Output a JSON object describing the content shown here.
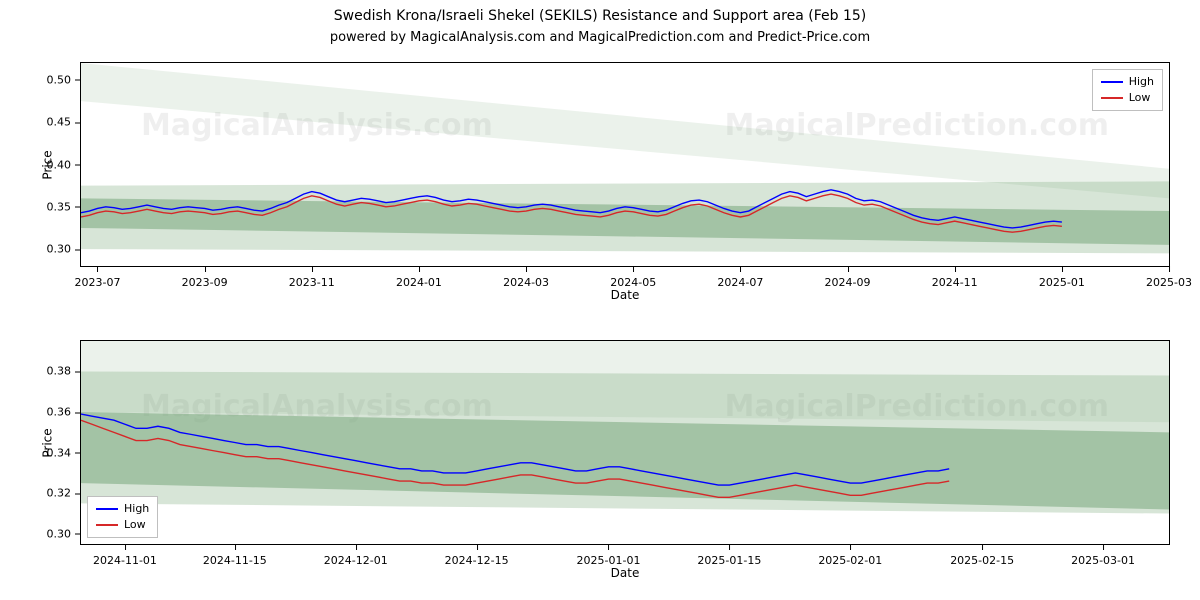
{
  "title": "Swedish Krona/Israeli Shekel (SEKILS) Resistance and Support area (Feb 15)",
  "subtitle": "powered by MagicalAnalysis.com and MagicalPrediction.com and Predict-Price.com",
  "watermark_left": "MagicalAnalysis.com",
  "watermark_right": "MagicalPrediction.com",
  "legend": {
    "high": "High",
    "low": "Low"
  },
  "colors": {
    "high_line": "#0000ff",
    "low_line": "#d62728",
    "band_fill": "#79a87b",
    "band_opacity_dark": 0.55,
    "band_opacity_mid": 0.3,
    "band_opacity_light": 0.15,
    "axis": "#000000",
    "background": "#ffffff",
    "watermark": "#000000",
    "legend_border": "#bfbfbf"
  },
  "axis_labels": {
    "x": "Date",
    "y": "Price"
  },
  "line_width": 1.4,
  "title_fontsize": 14,
  "subtitle_fontsize": 13,
  "label_fontsize": 12,
  "tick_fontsize": 11,
  "chart_top": {
    "type": "line",
    "ylim": [
      0.28,
      0.52
    ],
    "yticks": [
      0.3,
      0.35,
      0.4,
      0.45,
      0.5
    ],
    "ytick_labels": [
      "0.30",
      "0.35",
      "0.40",
      "0.45",
      "0.50"
    ],
    "x_count": 120,
    "x_extent": 133,
    "xtick_positions": [
      2,
      15,
      28,
      41,
      54,
      67,
      80,
      93,
      106,
      119,
      132
    ],
    "xtick_labels": [
      "2023-07",
      "2023-09",
      "2023-11",
      "2024-01",
      "2024-03",
      "2024-05",
      "2024-07",
      "2024-09",
      "2024-11",
      "2025-01",
      "2025-03"
    ],
    "bands": [
      {
        "y0_start": 0.475,
        "y1_start": 0.52,
        "y0_end": 0.36,
        "y1_end": 0.395,
        "opacity": 0.15
      },
      {
        "y0_start": 0.3,
        "y1_start": 0.375,
        "y0_end": 0.295,
        "y1_end": 0.38,
        "opacity": 0.3
      },
      {
        "y0_start": 0.325,
        "y1_start": 0.36,
        "y0_end": 0.305,
        "y1_end": 0.345,
        "opacity": 0.55
      }
    ],
    "high": [
      0.343,
      0.345,
      0.348,
      0.35,
      0.349,
      0.347,
      0.348,
      0.35,
      0.352,
      0.35,
      0.348,
      0.347,
      0.349,
      0.35,
      0.349,
      0.348,
      0.346,
      0.347,
      0.349,
      0.35,
      0.348,
      0.346,
      0.345,
      0.348,
      0.352,
      0.355,
      0.36,
      0.365,
      0.368,
      0.366,
      0.362,
      0.358,
      0.356,
      0.358,
      0.36,
      0.359,
      0.357,
      0.355,
      0.356,
      0.358,
      0.36,
      0.362,
      0.363,
      0.361,
      0.358,
      0.356,
      0.357,
      0.359,
      0.358,
      0.356,
      0.354,
      0.352,
      0.35,
      0.349,
      0.35,
      0.352,
      0.353,
      0.352,
      0.35,
      0.348,
      0.346,
      0.345,
      0.344,
      0.343,
      0.345,
      0.348,
      0.35,
      0.349,
      0.347,
      0.345,
      0.344,
      0.346,
      0.35,
      0.354,
      0.357,
      0.358,
      0.356,
      0.352,
      0.348,
      0.345,
      0.343,
      0.345,
      0.35,
      0.355,
      0.36,
      0.365,
      0.368,
      0.366,
      0.362,
      0.365,
      0.368,
      0.37,
      0.368,
      0.365,
      0.36,
      0.357,
      0.358,
      0.356,
      0.352,
      0.348,
      0.344,
      0.34,
      0.337,
      0.335,
      0.334,
      0.336,
      0.338,
      0.336,
      0.334,
      0.332,
      0.33,
      0.328,
      0.326,
      0.325,
      0.326,
      0.328,
      0.33,
      0.332,
      0.333,
      0.332
    ],
    "low": [
      0.338,
      0.34,
      0.343,
      0.345,
      0.344,
      0.342,
      0.343,
      0.345,
      0.347,
      0.345,
      0.343,
      0.342,
      0.344,
      0.345,
      0.344,
      0.343,
      0.341,
      0.342,
      0.344,
      0.345,
      0.343,
      0.341,
      0.34,
      0.343,
      0.347,
      0.35,
      0.355,
      0.36,
      0.363,
      0.361,
      0.357,
      0.353,
      0.351,
      0.353,
      0.355,
      0.354,
      0.352,
      0.35,
      0.351,
      0.353,
      0.355,
      0.357,
      0.358,
      0.356,
      0.353,
      0.351,
      0.352,
      0.354,
      0.353,
      0.351,
      0.349,
      0.347,
      0.345,
      0.344,
      0.345,
      0.347,
      0.348,
      0.347,
      0.345,
      0.343,
      0.341,
      0.34,
      0.339,
      0.338,
      0.34,
      0.343,
      0.345,
      0.344,
      0.342,
      0.34,
      0.339,
      0.341,
      0.345,
      0.349,
      0.352,
      0.353,
      0.351,
      0.347,
      0.343,
      0.34,
      0.338,
      0.34,
      0.345,
      0.35,
      0.355,
      0.36,
      0.363,
      0.361,
      0.357,
      0.36,
      0.363,
      0.365,
      0.363,
      0.36,
      0.355,
      0.352,
      0.353,
      0.351,
      0.347,
      0.343,
      0.339,
      0.335,
      0.332,
      0.33,
      0.329,
      0.331,
      0.333,
      0.331,
      0.329,
      0.327,
      0.325,
      0.323,
      0.321,
      0.32,
      0.321,
      0.323,
      0.325,
      0.327,
      0.328,
      0.327
    ]
  },
  "chart_bot": {
    "type": "line",
    "ylim": [
      0.295,
      0.395
    ],
    "yticks": [
      0.3,
      0.32,
      0.34,
      0.36,
      0.38
    ],
    "ytick_labels": [
      "0.30",
      "0.32",
      "0.34",
      "0.36",
      "0.38"
    ],
    "x_count": 80,
    "x_extent": 100,
    "xtick_positions": [
      4,
      14,
      25,
      36,
      48,
      59,
      70,
      82,
      93
    ],
    "xtick_labels": [
      "2024-11-01",
      "2024-11-15",
      "2024-12-01",
      "2024-12-15",
      "2025-01-01",
      "2025-01-15",
      "2025-02-01",
      "2025-02-15",
      "2025-03-01"
    ],
    "bands": [
      {
        "y0_start": 0.36,
        "y1_start": 0.4,
        "y0_end": 0.355,
        "y1_end": 0.4,
        "opacity": 0.15
      },
      {
        "y0_start": 0.315,
        "y1_start": 0.38,
        "y0_end": 0.31,
        "y1_end": 0.378,
        "opacity": 0.3
      },
      {
        "y0_start": 0.325,
        "y1_start": 0.36,
        "y0_end": 0.312,
        "y1_end": 0.35,
        "opacity": 0.55
      }
    ],
    "high": [
      0.359,
      0.358,
      0.357,
      0.356,
      0.354,
      0.352,
      0.352,
      0.353,
      0.352,
      0.35,
      0.349,
      0.348,
      0.347,
      0.346,
      0.345,
      0.344,
      0.344,
      0.343,
      0.343,
      0.342,
      0.341,
      0.34,
      0.339,
      0.338,
      0.337,
      0.336,
      0.335,
      0.334,
      0.333,
      0.332,
      0.332,
      0.331,
      0.331,
      0.33,
      0.33,
      0.33,
      0.331,
      0.332,
      0.333,
      0.334,
      0.335,
      0.335,
      0.334,
      0.333,
      0.332,
      0.331,
      0.331,
      0.332,
      0.333,
      0.333,
      0.332,
      0.331,
      0.33,
      0.329,
      0.328,
      0.327,
      0.326,
      0.325,
      0.324,
      0.324,
      0.325,
      0.326,
      0.327,
      0.328,
      0.329,
      0.33,
      0.329,
      0.328,
      0.327,
      0.326,
      0.325,
      0.325,
      0.326,
      0.327,
      0.328,
      0.329,
      0.33,
      0.331,
      0.331,
      0.332
    ],
    "low": [
      0.356,
      0.354,
      0.352,
      0.35,
      0.348,
      0.346,
      0.346,
      0.347,
      0.346,
      0.344,
      0.343,
      0.342,
      0.341,
      0.34,
      0.339,
      0.338,
      0.338,
      0.337,
      0.337,
      0.336,
      0.335,
      0.334,
      0.333,
      0.332,
      0.331,
      0.33,
      0.329,
      0.328,
      0.327,
      0.326,
      0.326,
      0.325,
      0.325,
      0.324,
      0.324,
      0.324,
      0.325,
      0.326,
      0.327,
      0.328,
      0.329,
      0.329,
      0.328,
      0.327,
      0.326,
      0.325,
      0.325,
      0.326,
      0.327,
      0.327,
      0.326,
      0.325,
      0.324,
      0.323,
      0.322,
      0.321,
      0.32,
      0.319,
      0.318,
      0.318,
      0.319,
      0.32,
      0.321,
      0.322,
      0.323,
      0.324,
      0.323,
      0.322,
      0.321,
      0.32,
      0.319,
      0.319,
      0.32,
      0.321,
      0.322,
      0.323,
      0.324,
      0.325,
      0.325,
      0.326
    ]
  }
}
